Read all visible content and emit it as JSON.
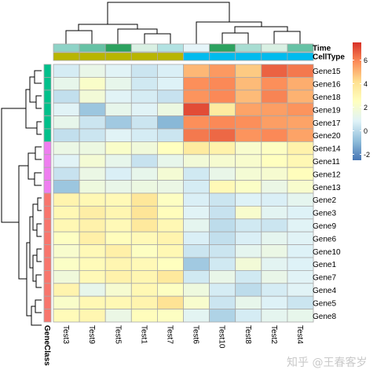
{
  "chart_data": {
    "type": "heatmap",
    "columns": [
      "Test3",
      "Test9",
      "Test5",
      "Test1",
      "Test7",
      "Test6",
      "Test10",
      "Test8",
      "Test2",
      "Test4"
    ],
    "rows": [
      "Gene15",
      "Gene16",
      "Gene18",
      "Gene19",
      "Gene17",
      "Gene20",
      "Gene14",
      "Gene11",
      "Gene12",
      "Gene13",
      "Gene2",
      "Gene3",
      "Gene9",
      "Gene6",
      "Gene10",
      "Gene1",
      "Gene7",
      "Gene4",
      "Gene5",
      "Gene8"
    ],
    "values": [
      [
        0.6,
        1.3,
        0.9,
        0.4,
        0.7,
        5.0,
        5.6,
        4.6,
        6.6,
        6.2
      ],
      [
        1.2,
        2.2,
        1.2,
        0.5,
        0.8,
        5.8,
        5.9,
        4.9,
        5.8,
        5.2
      ],
      [
        0.2,
        1.8,
        0.9,
        0.6,
        0.3,
        5.7,
        5.9,
        4.9,
        6.0,
        5.1
      ],
      [
        0.9,
        -0.6,
        1.2,
        0.9,
        1.5,
        7.0,
        3.6,
        5.4,
        5.5,
        5.7
      ],
      [
        1.2,
        0.4,
        -0.5,
        0.4,
        -1.0,
        5.8,
        5.9,
        5.8,
        5.5,
        5.4
      ],
      [
        0.2,
        0.4,
        0.9,
        0.6,
        0.4,
        6.2,
        6.5,
        5.7,
        5.9,
        5.4
      ],
      [
        1.4,
        1.5,
        2.2,
        1.7,
        2.5,
        3.6,
        3.2,
        2.1,
        2.4,
        3.2
      ],
      [
        0.9,
        1.9,
        1.2,
        0.3,
        1.2,
        1.8,
        2.0,
        2.1,
        2.5,
        2.9
      ],
      [
        0.3,
        1.4,
        0.7,
        1.2,
        1.9,
        0.5,
        1.3,
        1.9,
        2.0,
        2.6
      ],
      [
        -0.6,
        1.6,
        1.3,
        1.5,
        1.4,
        0.6,
        2.8,
        2.3,
        1.4,
        2.1
      ],
      [
        3.1,
        2.9,
        2.8,
        3.8,
        2.4,
        0.7,
        0.4,
        0.8,
        0.7,
        1.1
      ],
      [
        2.9,
        3.4,
        3.0,
        3.9,
        2.6,
        0.9,
        0.3,
        2.1,
        1.0,
        0.8
      ],
      [
        2.9,
        3.2,
        2.8,
        3.7,
        2.9,
        1.1,
        0.1,
        0.5,
        0.4,
        0.9
      ],
      [
        2.4,
        3.3,
        2.6,
        2.8,
        3.1,
        0.7,
        0.2,
        0.7,
        1.1,
        0.9
      ],
      [
        2.1,
        2.8,
        3.3,
        2.4,
        2.9,
        0.4,
        0.4,
        1.1,
        1.4,
        0.8
      ],
      [
        2.3,
        2.7,
        3.0,
        2.8,
        2.5,
        -0.5,
        0.5,
        1.8,
        1.0,
        0.8
      ],
      [
        1.7,
        2.8,
        3.2,
        3.0,
        3.7,
        0.5,
        1.3,
        0.5,
        1.3,
        0.9
      ],
      [
        3.1,
        1.2,
        2.0,
        2.9,
        2.4,
        1.6,
        0.6,
        0.1,
        0.6,
        0.9
      ],
      [
        2.2,
        2.9,
        2.9,
        3.1,
        4.0,
        2.1,
        0.4,
        1.2,
        0.8,
        0.4
      ],
      [
        2.7,
        3.0,
        1.4,
        2.6,
        2.4,
        1.0,
        -0.2,
        0.6,
        1.1,
        1.2
      ]
    ],
    "color_scale": {
      "ticks": [
        -2,
        0,
        2,
        4,
        6
      ],
      "domain": [
        -2.5,
        7.5
      ],
      "stops": [
        "#4575b4",
        "#91bfdb",
        "#e0f3f8",
        "#ffffbf",
        "#fee090",
        "#fc8d59",
        "#d73027"
      ]
    },
    "annotations": {
      "top": [
        {
          "label": "Time",
          "colors": [
            "#8ed3c7",
            "#66c2a5",
            "#2ca25f",
            "#d9f0e3",
            "#b2e2e2",
            "#e5f5f9",
            "#2ca25f",
            "#a8ddd2",
            "#d9f0e3",
            "#66c2a5"
          ]
        },
        {
          "label": "CellType",
          "colors": [
            "#b8b500",
            "#b8b500",
            "#b8b500",
            "#b8b500",
            "#b8b500",
            "#00bbee",
            "#00bbee",
            "#00bbee",
            "#00bbee",
            "#00bbee"
          ]
        }
      ],
      "left": {
        "label": "GeneClass",
        "groups": [
          {
            "color": "#00c08b",
            "count": 6
          },
          {
            "color": "#ef7ef0",
            "count": 4
          },
          {
            "color": "#f8766d",
            "count": 10
          }
        ]
      }
    }
  },
  "watermark": "知乎 @王春客岁"
}
